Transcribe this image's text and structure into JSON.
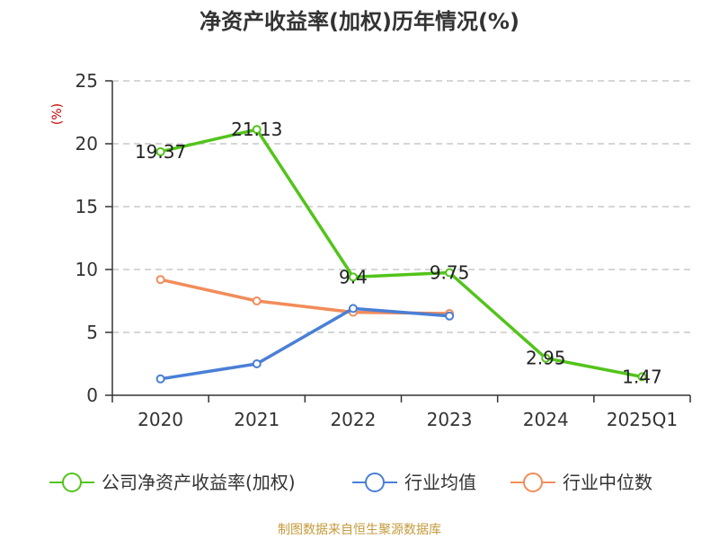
{
  "chart_data": {
    "type": "line",
    "title": "净资产收益率(加权)历年情况(%)",
    "ylabel": "(%)",
    "xlabel": "",
    "categories": [
      "2020",
      "2021",
      "2022",
      "2023",
      "2024",
      "2025Q1"
    ],
    "ylim": [
      0,
      25
    ],
    "yticks": [
      0,
      5,
      10,
      15,
      20,
      25
    ],
    "grid": true,
    "legend_position": "bottom",
    "series": [
      {
        "name": "公司净资产收益率(加权)",
        "color": "#52c41a",
        "values": [
          19.37,
          21.13,
          9.4,
          9.75,
          2.95,
          1.47
        ],
        "labels": [
          "19.37",
          "21.13",
          "9.4",
          "9.75",
          "2.95",
          "1.47"
        ],
        "show_labels": true
      },
      {
        "name": "行业均值",
        "color": "#4a7fd6",
        "values": [
          1.3,
          2.5,
          6.9,
          6.3,
          null,
          null
        ],
        "show_labels": false
      },
      {
        "name": "行业中位数",
        "color": "#f28c5a",
        "values": [
          9.2,
          7.5,
          6.6,
          6.5,
          null,
          null
        ],
        "show_labels": false
      }
    ],
    "source": "制图数据来自恒生聚源数据库"
  }
}
